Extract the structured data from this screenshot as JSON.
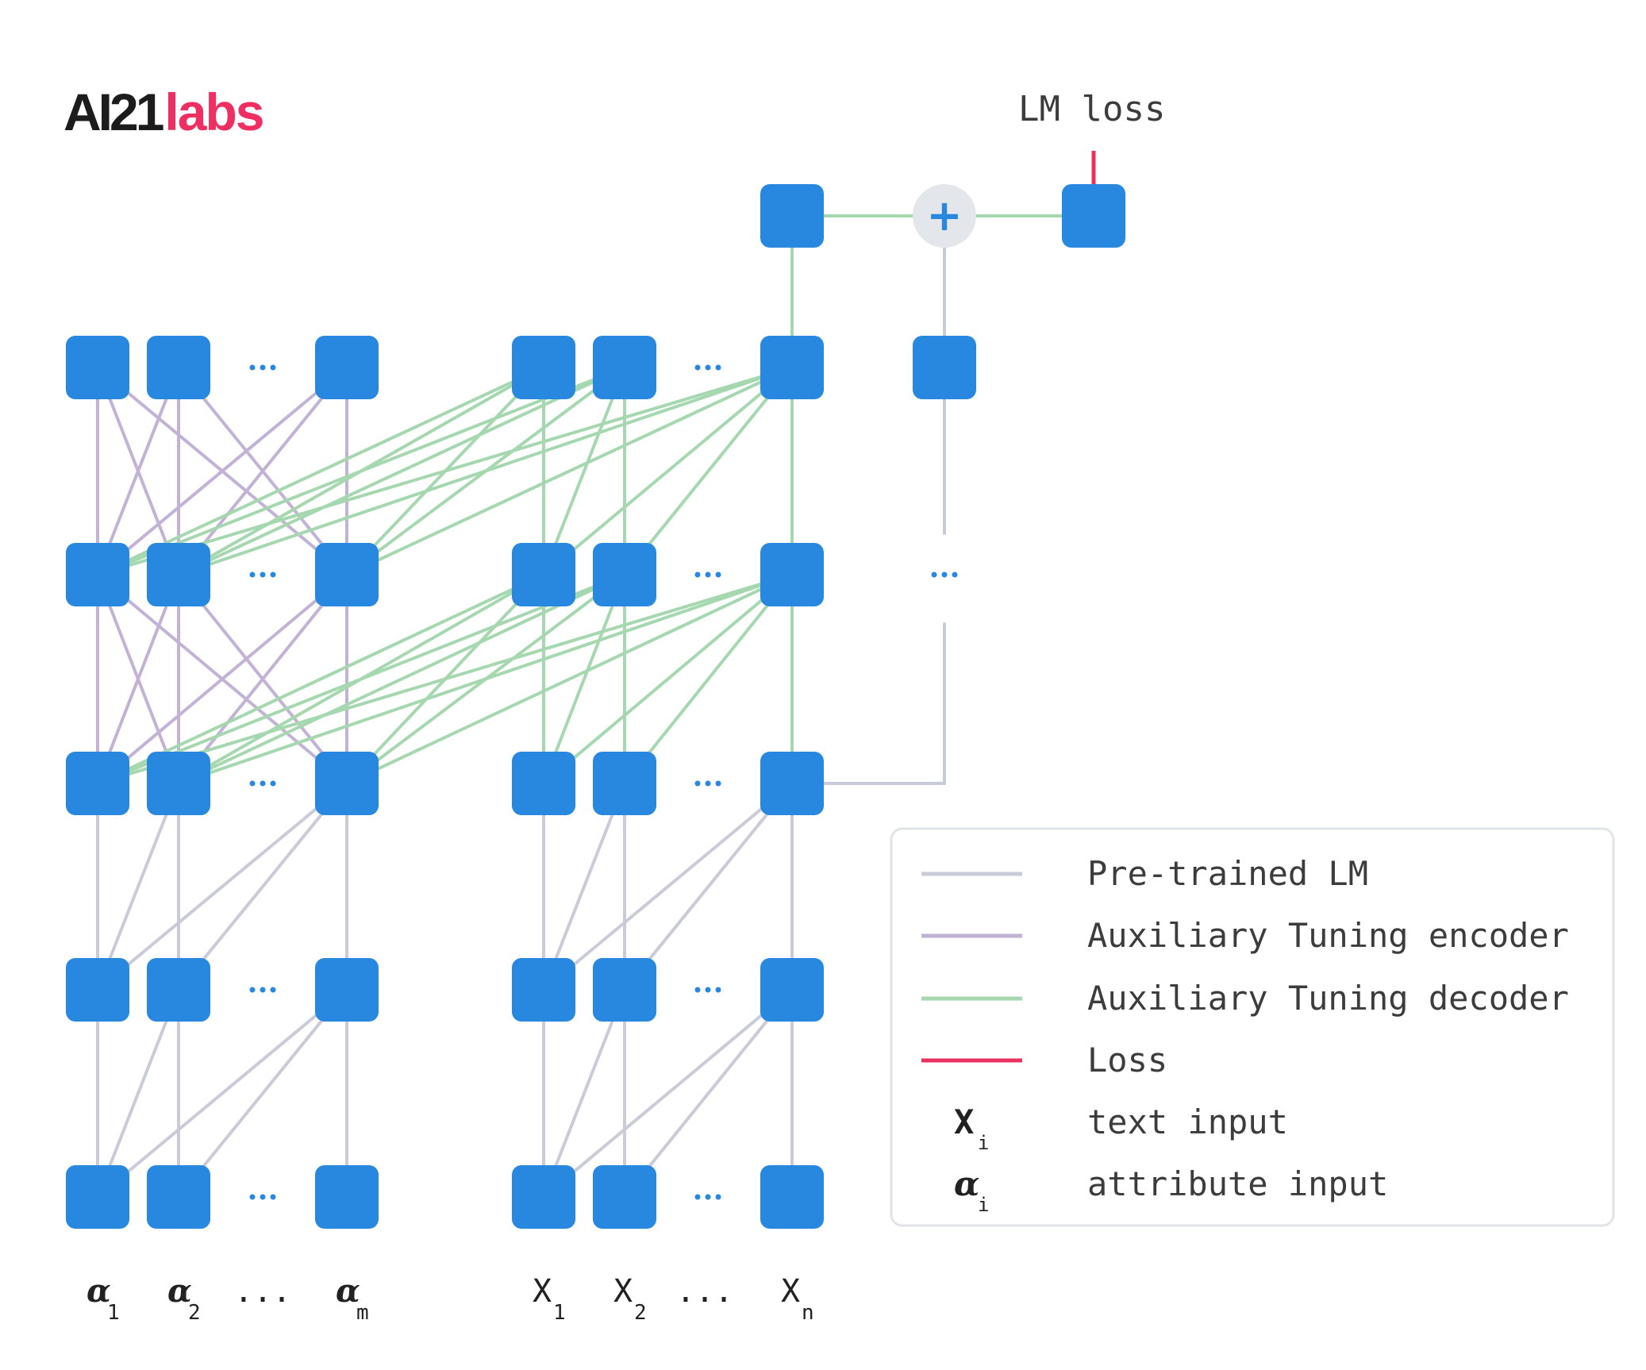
{
  "logo": {
    "ai": "AI21",
    "labs": "labs"
  },
  "loss_label": "LM loss",
  "plus_symbol": "+",
  "ellipsis": "...",
  "inputs": {
    "attribute": [
      {
        "sym": "α",
        "sub": "1"
      },
      {
        "sym": "α",
        "sub": "2"
      },
      {
        "sym": "α",
        "sub": "m"
      }
    ],
    "text": [
      {
        "sym": "X",
        "sub": "1"
      },
      {
        "sym": "X",
        "sub": "2"
      },
      {
        "sym": "X",
        "sub": "n"
      }
    ]
  },
  "legend": {
    "items": [
      {
        "label": "Pre-trained LM",
        "color": "#c9cbd8"
      },
      {
        "label": "Auxiliary Tuning encoder",
        "color": "#c2b2d6"
      },
      {
        "label": "Auxiliary Tuning decoder",
        "color": "#a6d8b0"
      },
      {
        "label": "Loss",
        "color": "#e8335f"
      }
    ],
    "symbols": [
      {
        "sym": "X",
        "sub": "i",
        "label": "text input"
      },
      {
        "sym": "α",
        "sub": "i",
        "label": "attribute input"
      }
    ]
  },
  "colors": {
    "node": "#2888e0",
    "pretrained": "#c9cbd8",
    "encoder": "#c2b2d6",
    "decoder": "#a6d8b0",
    "loss": "#e8335f",
    "plus_circle": "#e3e6ea"
  }
}
